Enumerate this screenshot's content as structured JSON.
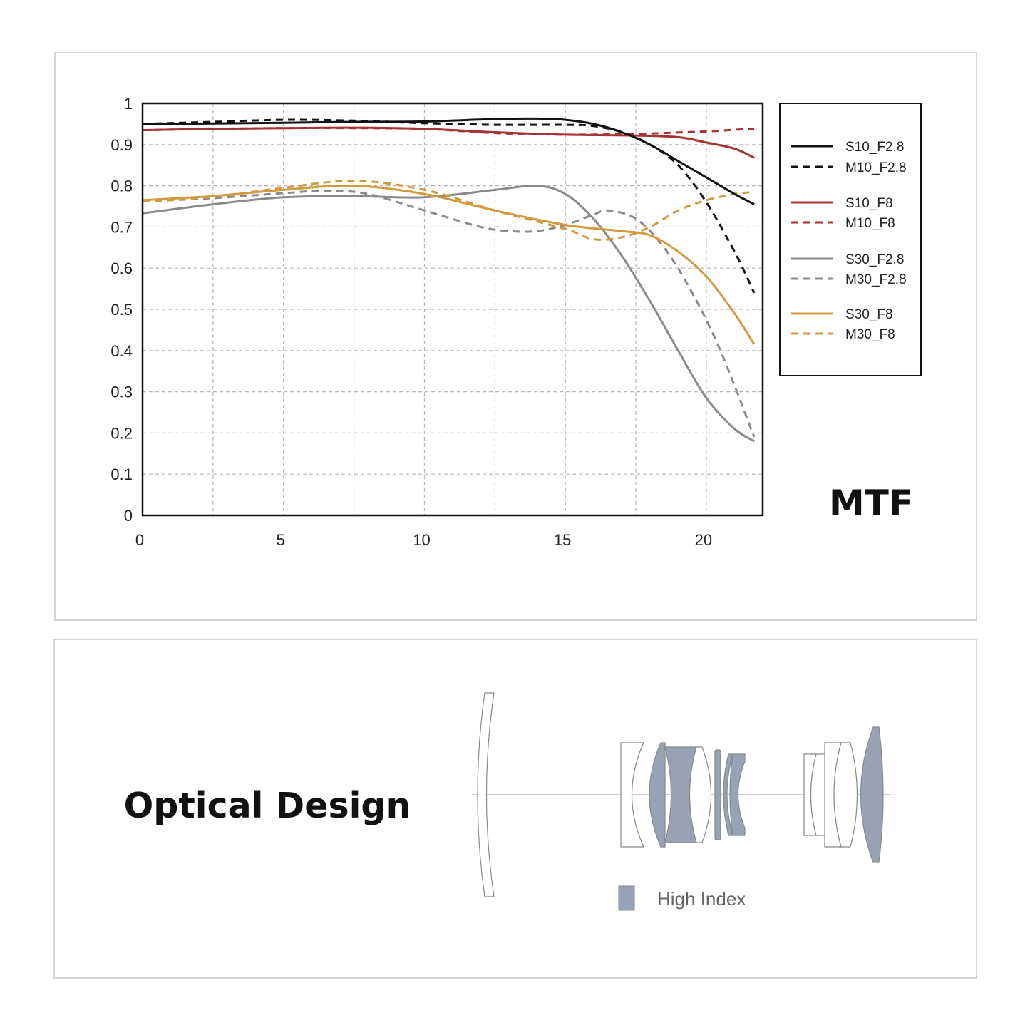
{
  "chart_data": {
    "type": "line",
    "title": "MTF",
    "xlim": [
      0,
      22
    ],
    "ylim": [
      0,
      1
    ],
    "x_ticks": [
      "0",
      "5",
      "10",
      "15",
      "20"
    ],
    "y_ticks": [
      "0",
      "0.1",
      "0.2",
      "0.3",
      "0.4",
      "0.5",
      "0.6",
      "0.7",
      "0.8",
      "0.9",
      "1"
    ],
    "grid": true,
    "legend_position": "right",
    "series": [
      {
        "name": "S10_F2.8",
        "color": "#111111",
        "dashed": false,
        "points": [
          [
            0,
            0.95
          ],
          [
            2.5,
            0.951
          ],
          [
            5,
            0.953
          ],
          [
            7.5,
            0.955
          ],
          [
            10,
            0.956
          ],
          [
            12.5,
            0.962
          ],
          [
            14,
            0.963
          ],
          [
            15,
            0.96
          ],
          [
            16,
            0.95
          ],
          [
            17,
            0.93
          ],
          [
            18,
            0.9
          ],
          [
            19,
            0.86
          ],
          [
            20,
            0.82
          ],
          [
            21,
            0.78
          ],
          [
            21.7,
            0.755
          ]
        ]
      },
      {
        "name": "M10_F2.8",
        "color": "#111111",
        "dashed": true,
        "points": [
          [
            0,
            0.95
          ],
          [
            2.5,
            0.955
          ],
          [
            5,
            0.96
          ],
          [
            7.5,
            0.958
          ],
          [
            10,
            0.952
          ],
          [
            12.5,
            0.948
          ],
          [
            15,
            0.948
          ],
          [
            16,
            0.945
          ],
          [
            17,
            0.93
          ],
          [
            18,
            0.9
          ],
          [
            19,
            0.85
          ],
          [
            20,
            0.76
          ],
          [
            21,
            0.64
          ],
          [
            21.7,
            0.54
          ]
        ]
      },
      {
        "name": "S10_F8",
        "color": "#a83232",
        "dashed": false,
        "points": [
          [
            0,
            0.935
          ],
          [
            2.5,
            0.938
          ],
          [
            5,
            0.94
          ],
          [
            7.5,
            0.941
          ],
          [
            10,
            0.938
          ],
          [
            12.5,
            0.93
          ],
          [
            15,
            0.924
          ],
          [
            17.5,
            0.922
          ],
          [
            19,
            0.918
          ],
          [
            20,
            0.905
          ],
          [
            21,
            0.89
          ],
          [
            21.7,
            0.868
          ]
        ]
      },
      {
        "name": "M10_F8",
        "color": "#a83232",
        "dashed": true,
        "points": [
          [
            0,
            0.935
          ],
          [
            2.5,
            0.938
          ],
          [
            5,
            0.94
          ],
          [
            7.5,
            0.94
          ],
          [
            10,
            0.938
          ],
          [
            12.5,
            0.928
          ],
          [
            15,
            0.924
          ],
          [
            17.5,
            0.926
          ],
          [
            20,
            0.932
          ],
          [
            21,
            0.936
          ],
          [
            21.7,
            0.938
          ]
        ]
      },
      {
        "name": "S30_F2.8",
        "color": "#8a8a8a",
        "dashed": false,
        "points": [
          [
            0,
            0.733
          ],
          [
            2.5,
            0.755
          ],
          [
            5,
            0.772
          ],
          [
            7.5,
            0.775
          ],
          [
            10,
            0.772
          ],
          [
            12.5,
            0.79
          ],
          [
            14,
            0.8
          ],
          [
            15,
            0.78
          ],
          [
            16,
            0.72
          ],
          [
            17,
            0.63
          ],
          [
            18,
            0.52
          ],
          [
            19,
            0.4
          ],
          [
            20,
            0.285
          ],
          [
            21,
            0.21
          ],
          [
            21.7,
            0.18
          ]
        ]
      },
      {
        "name": "M30_F2.8",
        "color": "#8a8a8a",
        "dashed": true,
        "points": [
          [
            0,
            0.762
          ],
          [
            2.5,
            0.77
          ],
          [
            5,
            0.782
          ],
          [
            6.5,
            0.788
          ],
          [
            8,
            0.78
          ],
          [
            10,
            0.74
          ],
          [
            12,
            0.7
          ],
          [
            13,
            0.69
          ],
          [
            14,
            0.69
          ],
          [
            15,
            0.705
          ],
          [
            16,
            0.73
          ],
          [
            16.5,
            0.74
          ],
          [
            17.5,
            0.72
          ],
          [
            18.5,
            0.65
          ],
          [
            19.5,
            0.54
          ],
          [
            20.5,
            0.4
          ],
          [
            21.7,
            0.19
          ]
        ]
      },
      {
        "name": "S30_F8",
        "color": "#d29a3c",
        "dashed": false,
        "points": [
          [
            0,
            0.765
          ],
          [
            2.5,
            0.775
          ],
          [
            5,
            0.79
          ],
          [
            7.5,
            0.8
          ],
          [
            10,
            0.78
          ],
          [
            12.5,
            0.74
          ],
          [
            15,
            0.705
          ],
          [
            17,
            0.69
          ],
          [
            18,
            0.68
          ],
          [
            19,
            0.64
          ],
          [
            20,
            0.58
          ],
          [
            21,
            0.49
          ],
          [
            21.7,
            0.415
          ]
        ]
      },
      {
        "name": "M30_F8",
        "color": "#d29a3c",
        "dashed": true,
        "points": [
          [
            0,
            0.762
          ],
          [
            2.5,
            0.773
          ],
          [
            5,
            0.795
          ],
          [
            7.5,
            0.812
          ],
          [
            10,
            0.79
          ],
          [
            12.5,
            0.74
          ],
          [
            15,
            0.695
          ],
          [
            16,
            0.67
          ],
          [
            17,
            0.675
          ],
          [
            18,
            0.7
          ],
          [
            19,
            0.74
          ],
          [
            20,
            0.765
          ],
          [
            21,
            0.78
          ],
          [
            21.7,
            0.785
          ]
        ]
      }
    ]
  },
  "optical_design": {
    "title": "Optical Design",
    "legend_label": "High Index",
    "high_index_color": "#98a2b5"
  }
}
